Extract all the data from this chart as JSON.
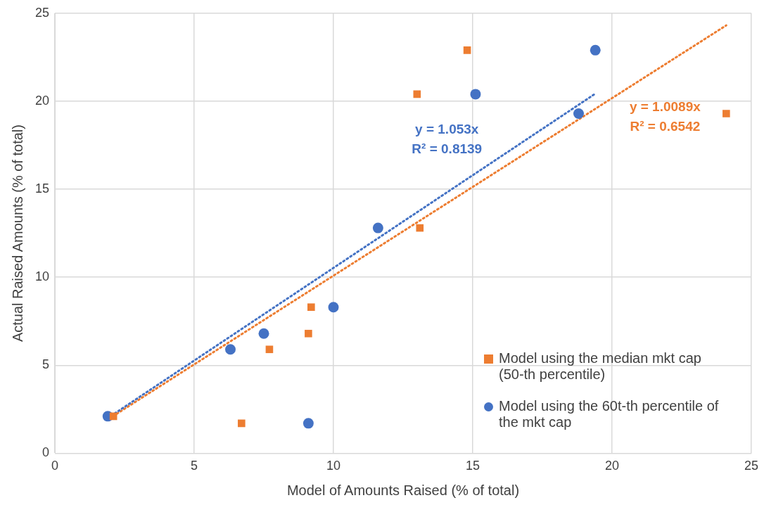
{
  "chart_data": {
    "type": "scatter",
    "xlabel": "Model of Amounts Raised (% of total)",
    "ylabel": "Actual Raised Amounts (% of total)",
    "xlim": [
      0,
      25
    ],
    "ylim": [
      0,
      25
    ],
    "xticks": [
      0,
      5,
      10,
      15,
      20,
      25
    ],
    "yticks": [
      0,
      5,
      10,
      15,
      20,
      25
    ],
    "grid": true,
    "legend": "bottom right",
    "series": [
      {
        "name": "Model using the median mkt cap (50-th percentile)",
        "color": "#ed7d31",
        "marker": "square",
        "x": [
          2.1,
          6.7,
          7.7,
          9.1,
          9.2,
          13.0,
          13.1,
          14.8,
          24.1
        ],
        "values": [
          2.1,
          1.7,
          5.9,
          6.8,
          8.3,
          20.4,
          12.8,
          22.9,
          19.3
        ]
      },
      {
        "name": "Model using the 60t-th percentile of the mkt cap",
        "color": "#4472c4",
        "marker": "circle",
        "x": [
          1.9,
          6.3,
          7.5,
          9.1,
          10.0,
          11.6,
          15.1,
          18.8,
          19.4
        ],
        "values": [
          2.1,
          5.9,
          6.8,
          1.7,
          8.3,
          12.8,
          20.4,
          19.3,
          22.9
        ]
      },
      {
        "type": "line",
        "color": "#4472c4",
        "marker": "none",
        "line_style": "dotted",
        "x": [
          1.9,
          19.4
        ],
        "values": [
          2.0,
          20.43
        ]
      },
      {
        "type": "line",
        "color": "#ed7d31",
        "marker": "none",
        "line_style": "dotted",
        "x": [
          2.1,
          24.1
        ],
        "values": [
          2.12,
          24.31
        ]
      }
    ],
    "annotations": [
      "y = 1.053x",
      "R² = 0.8139",
      "y = 1.0089x",
      "R² = 0.6542"
    ]
  }
}
